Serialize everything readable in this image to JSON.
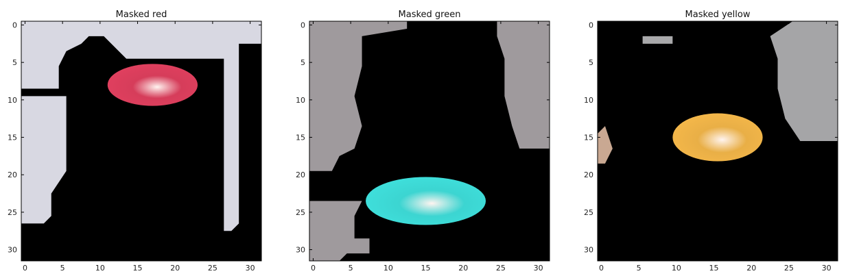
{
  "chart_data": [
    {
      "type": "heatmap",
      "title": "Masked red",
      "xlim": [
        0,
        32
      ],
      "ylim": [
        32,
        0
      ],
      "x_ticks": [
        0,
        5,
        10,
        15,
        20,
        25,
        30
      ],
      "y_ticks": [
        0,
        5,
        10,
        15,
        20,
        25,
        30
      ],
      "grid": false,
      "background": "#000000",
      "regions": [
        {
          "kind": "mask-border",
          "color": "#d8d8e2",
          "points": [
            [
              0,
              0
            ],
            [
              32,
              0
            ],
            [
              32,
              3
            ],
            [
              29,
              3
            ],
            [
              29,
              27
            ],
            [
              28,
              28
            ],
            [
              27,
              28
            ],
            [
              27,
              5
            ],
            [
              14,
              5
            ],
            [
              11,
              2
            ],
            [
              9,
              2
            ],
            [
              8,
              3
            ],
            [
              6,
              4
            ],
            [
              5,
              6
            ],
            [
              5,
              9
            ],
            [
              0,
              9
            ],
            [
              0,
              10
            ],
            [
              6,
              10
            ],
            [
              6,
              15
            ],
            [
              6,
              20
            ],
            [
              4,
              23
            ],
            [
              4,
              26
            ],
            [
              3,
              27
            ],
            [
              0,
              27
            ]
          ]
        },
        {
          "kind": "light-blob",
          "color": "#e1405f",
          "cx": 17.5,
          "cy": 8.5,
          "rx": 6,
          "ry": 2.8
        }
      ]
    },
    {
      "type": "heatmap",
      "title": "Masked green",
      "xlim": [
        0,
        32
      ],
      "ylim": [
        32,
        0
      ],
      "x_ticks": [
        0,
        5,
        10,
        15,
        20,
        25,
        30
      ],
      "y_ticks": [
        0,
        5,
        10,
        15,
        20,
        25,
        30
      ],
      "grid": false,
      "background": "#000000",
      "regions": [
        {
          "kind": "mask-border",
          "color": "#9f9a9d",
          "points": [
            [
              0,
              0
            ],
            [
              13,
              0
            ],
            [
              13,
              1
            ],
            [
              7,
              2
            ],
            [
              7,
              6
            ],
            [
              6,
              10
            ],
            [
              7,
              14
            ],
            [
              6,
              17
            ],
            [
              4,
              18
            ],
            [
              3,
              20
            ],
            [
              0,
              20
            ]
          ]
        },
        {
          "kind": "mask-border",
          "color": "#9f9a9d",
          "points": [
            [
              25,
              0
            ],
            [
              32,
              0
            ],
            [
              32,
              17
            ],
            [
              28,
              17
            ],
            [
              27,
              14
            ],
            [
              26,
              10
            ],
            [
              26,
              5
            ],
            [
              25,
              2
            ]
          ]
        },
        {
          "kind": "mask-border",
          "color": "#9f9a9d",
          "points": [
            [
              0,
              24
            ],
            [
              7,
              24
            ],
            [
              6,
              26
            ],
            [
              6,
              29
            ],
            [
              8,
              29
            ],
            [
              8,
              31
            ],
            [
              5,
              31
            ],
            [
              4,
              32
            ],
            [
              0,
              32
            ]
          ]
        },
        {
          "kind": "light-blob",
          "color": "#3fe0dc",
          "cx": 15.5,
          "cy": 24,
          "rx": 8,
          "ry": 3.2
        }
      ]
    },
    {
      "type": "heatmap",
      "title": "Masked yellow",
      "xlim": [
        0,
        32
      ],
      "ylim": [
        32,
        0
      ],
      "x_ticks": [
        0,
        5,
        10,
        15,
        20,
        25,
        30
      ],
      "y_ticks": [
        0,
        5,
        10,
        15,
        20,
        25,
        30
      ],
      "grid": false,
      "background": "#000000",
      "regions": [
        {
          "kind": "mask-border",
          "color": "#a5a5a7",
          "points": [
            [
              26,
              0
            ],
            [
              32,
              0
            ],
            [
              32,
              16
            ],
            [
              27,
              16
            ],
            [
              25,
              13
            ],
            [
              24,
              9
            ],
            [
              24,
              5
            ],
            [
              23,
              2
            ]
          ]
        },
        {
          "kind": "mask-border",
          "color": "#c9a892",
          "points": [
            [
              0,
              15
            ],
            [
              1,
              14
            ],
            [
              2,
              17
            ],
            [
              1,
              19
            ],
            [
              0,
              19
            ]
          ]
        },
        {
          "kind": "mask-border",
          "color": "#a9a9ab",
          "points": [
            [
              6,
              2
            ],
            [
              10,
              2
            ],
            [
              10,
              3
            ],
            [
              6,
              3
            ]
          ]
        },
        {
          "kind": "light-blob",
          "color": "#f5b84a",
          "cx": 16,
          "cy": 15.5,
          "rx": 6,
          "ry": 3.2
        }
      ]
    }
  ]
}
